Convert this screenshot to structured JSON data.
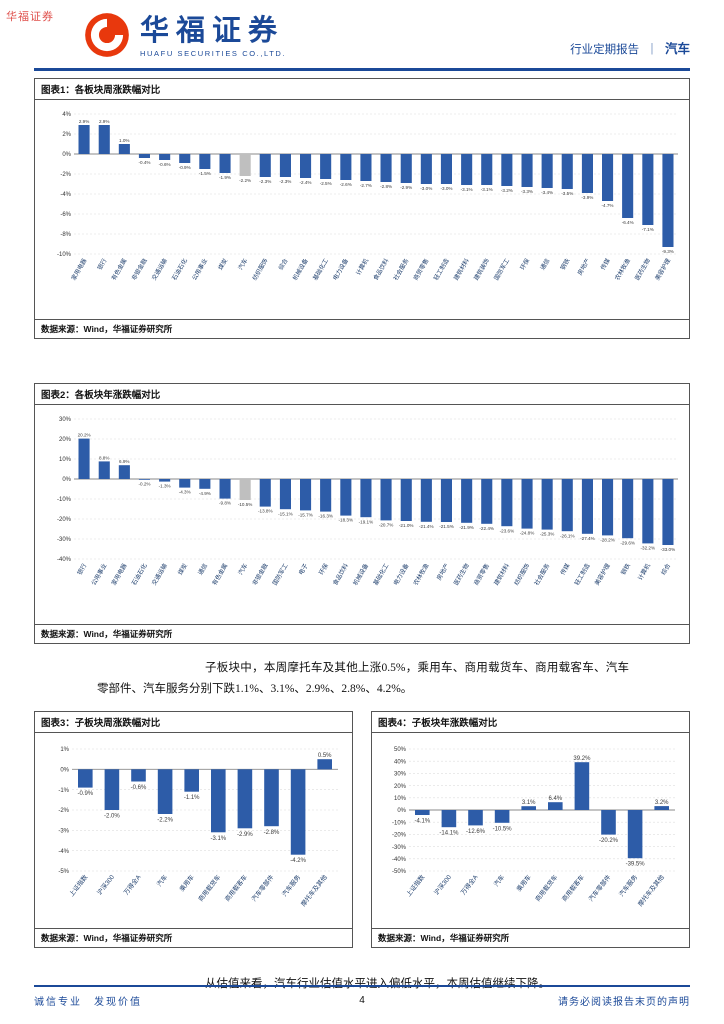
{
  "watermark": "华福证券",
  "header": {
    "brand_cn": "华福证券",
    "brand_en": "HUAFU SECURITIES CO.,LTD.",
    "report_type": "行业定期报告",
    "divider": "｜",
    "industry": "汽车"
  },
  "colors": {
    "brand_blue": "#1b4998",
    "bar_blue": "#2d5ca8",
    "bar_gray": "#bfbfbf",
    "logo_red": "#e8380d"
  },
  "figures": [
    {
      "title": "图表1：各板块周涨跌幅对比",
      "source": "数据来源：Wind，华福证券研究所"
    },
    {
      "title": "图表2：各板块年涨跌幅对比",
      "source": "数据来源：Wind，华福证券研究所"
    },
    {
      "title": "图表3：子板块周涨跌幅对比",
      "source": "数据来源：Wind，华福证券研究所"
    },
    {
      "title": "图表4：子板块年涨跌幅对比",
      "source": "数据来源：Wind，华福证券研究所"
    }
  ],
  "paragraphs": {
    "p1": "子板块中，本周摩托车及其他上涨0.5%，乘用车、商用载货车、商用载客车、汽车零部件、汽车服务分别下跌1.1%、3.1%、2.9%、2.8%、4.2%。",
    "p2": "从估值来看，汽车行业估值水平进入偏低水平，本周估值继续下降。"
  },
  "footer": {
    "left": "诚信专业　发现价值",
    "page": "4",
    "right": "请务必阅读报告末页的声明"
  },
  "chart_data": [
    {
      "type": "bar",
      "title": "各板块周涨跌幅对比",
      "categories": [
        "家用电器",
        "银行",
        "有色金属",
        "非银金融",
        "交通运输",
        "石油石化",
        "公用事业",
        "煤炭",
        "汽车",
        "纺织服饰",
        "综合",
        "机械设备",
        "基础化工",
        "电力设备",
        "计算机",
        "食品饮料",
        "社会服务",
        "商贸零售",
        "轻工制造",
        "建筑材料",
        "建筑装饰",
        "国防军工",
        "环保",
        "通信",
        "钢铁",
        "房地产",
        "传媒",
        "农林牧渔",
        "医药生物",
        "美容护理"
      ],
      "values": [
        2.9,
        2.9,
        1.0,
        -0.4,
        -0.6,
        -0.9,
        -1.5,
        -1.9,
        -2.2,
        -2.3,
        -2.3,
        -2.4,
        -2.5,
        -2.6,
        -2.7,
        -2.8,
        -2.9,
        -3.0,
        -3.0,
        -3.1,
        -3.1,
        -3.2,
        -3.3,
        -3.4,
        -3.5,
        -3.9,
        -4.7,
        -6.4,
        -7.1,
        -9.3
      ],
      "highlight_index": 8,
      "ylim": [
        -10,
        4
      ],
      "yticks": [
        4,
        2,
        0,
        -2,
        -4,
        -6,
        -8,
        -10
      ],
      "unit": "%",
      "xlabel": "",
      "ylabel": "",
      "legend": "none",
      "grid": true
    },
    {
      "type": "bar",
      "title": "各板块年涨跌幅对比",
      "categories": [
        "银行",
        "公用事业",
        "家用电器",
        "石油石化",
        "交通运输",
        "煤炭",
        "通信",
        "有色金属",
        "汽车",
        "非银金融",
        "国防军工",
        "电子",
        "环保",
        "食品饮料",
        "机械设备",
        "基础化工",
        "电力设备",
        "农林牧渔",
        "房地产",
        "医药生物",
        "商贸零售",
        "建筑材料",
        "纺织服饰",
        "社会服务",
        "传媒",
        "轻工制造",
        "美容护理",
        "钢铁",
        "计算机",
        "综合"
      ],
      "values": [
        20.2,
        8.8,
        6.9,
        -0.2,
        -1.3,
        -4.3,
        -4.9,
        -9.8,
        -10.5,
        -13.8,
        -15.1,
        -15.7,
        -16.3,
        -18.3,
        -19.1,
        -20.7,
        -21.0,
        -21.4,
        -21.5,
        -21.9,
        -22.4,
        -23.6,
        -24.8,
        -25.3,
        -26.1,
        -27.4,
        -28.2,
        -29.6,
        -32.2,
        -33.0
      ],
      "highlight_index": 8,
      "ylim": [
        -40,
        30
      ],
      "yticks": [
        30,
        20,
        10,
        0,
        -10,
        -20,
        -30,
        -40
      ],
      "unit": "%",
      "xlabel": "",
      "ylabel": "",
      "legend": "none",
      "grid": true
    },
    {
      "type": "bar",
      "title": "子板块周涨跌幅对比",
      "categories": [
        "上证指数",
        "沪深300",
        "万得全A",
        "汽车",
        "乘用车",
        "商用载货车",
        "商用载客车",
        "汽车零部件",
        "汽车服务",
        "摩托车及其他"
      ],
      "values": [
        -0.9,
        -2.0,
        -0.6,
        -2.2,
        -1.1,
        -3.1,
        -2.9,
        -2.8,
        -4.2,
        0.5
      ],
      "highlight_index": -1,
      "ylim": [
        -5,
        1
      ],
      "yticks": [
        1,
        0,
        -1,
        -2,
        -3,
        -4,
        -5
      ],
      "unit": "%",
      "xlabel": "",
      "ylabel": "",
      "legend": "none",
      "grid": true
    },
    {
      "type": "bar",
      "title": "子板块年涨跌幅对比",
      "categories": [
        "上证指数",
        "沪深300",
        "万得全A",
        "汽车",
        "乘用车",
        "商用载货车",
        "商用载客车",
        "汽车零部件",
        "汽车服务",
        "摩托车及其他"
      ],
      "values": [
        -4.1,
        -14.1,
        -12.6,
        -10.5,
        3.1,
        6.4,
        39.2,
        -20.2,
        -39.5,
        3.2
      ],
      "highlight_index": -1,
      "ylim": [
        -50,
        50
      ],
      "yticks": [
        50,
        40,
        30,
        20,
        10,
        0,
        -10,
        -20,
        -30,
        -40,
        -50
      ],
      "unit": "%",
      "xlabel": "",
      "ylabel": "",
      "legend": "none",
      "grid": true
    }
  ]
}
